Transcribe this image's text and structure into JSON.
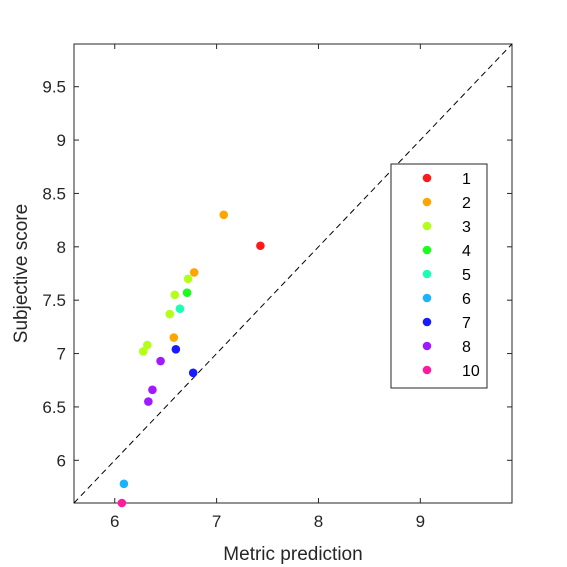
{
  "chart_data": {
    "type": "scatter",
    "xlabel": "Metric prediction",
    "ylabel": "Subjective score",
    "xlim": [
      5.6,
      9.9
    ],
    "ylim": [
      5.6,
      9.9
    ],
    "xticks": [
      6,
      7,
      8,
      9
    ],
    "yticks": [
      6,
      6.5,
      7,
      7.5,
      8,
      8.5,
      9,
      9.5
    ],
    "x_tick_labels": [
      "6",
      "7",
      "8",
      "9"
    ],
    "y_tick_labels": [
      "6",
      "6.5",
      "7",
      "7.5",
      "8",
      "8.5",
      "9",
      "9.5"
    ],
    "grid": false,
    "reference_line": "y = x (dashed)",
    "legend_position": "right",
    "series": [
      {
        "name": "1",
        "color": "#ff1a1a",
        "points": [
          [
            7.43,
            8.01
          ]
        ]
      },
      {
        "name": "2",
        "color": "#ffa500",
        "points": [
          [
            7.07,
            8.3
          ],
          [
            6.78,
            7.76
          ],
          [
            6.58,
            7.15
          ]
        ]
      },
      {
        "name": "3",
        "color": "#b3ff1a",
        "points": [
          [
            6.72,
            7.7
          ],
          [
            6.59,
            7.55
          ],
          [
            6.54,
            7.37
          ],
          [
            6.32,
            7.08
          ],
          [
            6.28,
            7.02
          ]
        ]
      },
      {
        "name": "4",
        "color": "#1aff1a",
        "points": [
          [
            6.71,
            7.57
          ]
        ]
      },
      {
        "name": "5",
        "color": "#1affb3",
        "points": [
          [
            6.64,
            7.42
          ]
        ]
      },
      {
        "name": "6",
        "color": "#1ab3ff",
        "points": [
          [
            6.09,
            5.78
          ]
        ]
      },
      {
        "name": "7",
        "color": "#1a1aff",
        "points": [
          [
            6.6,
            7.04
          ],
          [
            6.77,
            6.82
          ]
        ]
      },
      {
        "name": "8",
        "color": "#a01aff",
        "points": [
          [
            6.45,
            6.93
          ],
          [
            6.37,
            6.66
          ],
          [
            6.33,
            6.55
          ]
        ]
      },
      {
        "name": "10",
        "color": "#ff1aa0",
        "points": [
          [
            6.07,
            5.6
          ]
        ]
      }
    ]
  }
}
